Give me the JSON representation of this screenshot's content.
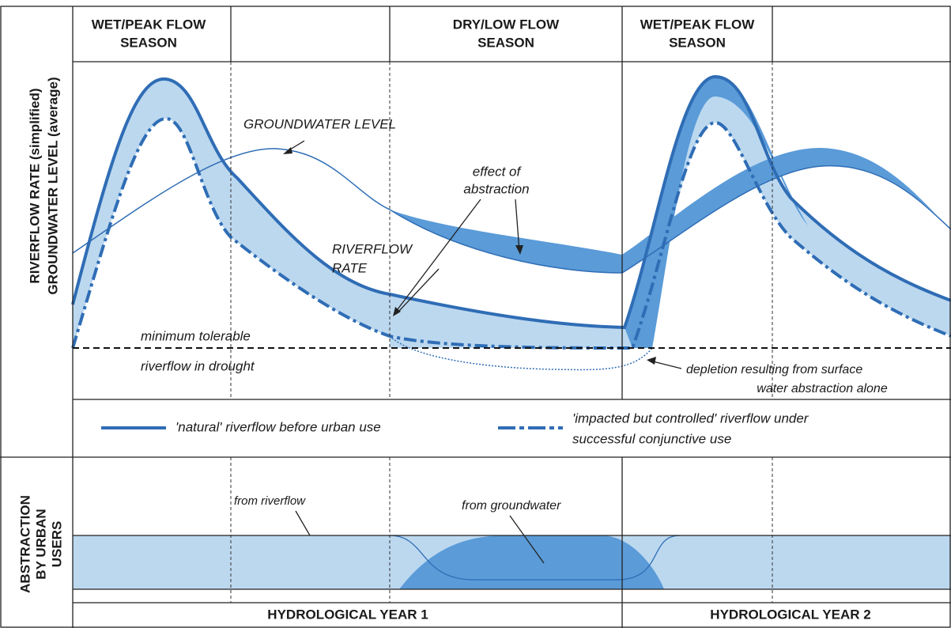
{
  "header": {
    "seasons": [
      [
        "WET/PEAK FLOW",
        "SEASON"
      ],
      [
        "DRY/LOW FLOW",
        "SEASON"
      ],
      [
        "WET/PEAK FLOW",
        "SEASON"
      ]
    ]
  },
  "axis_labels": {
    "top": [
      "RIVERFLOW RATE (simplified)",
      "GROUNDWATER LEVEL (average)"
    ],
    "bottom": [
      "ABSTRACTION",
      "BY URBAN",
      "USERS"
    ]
  },
  "annotations": {
    "groundwater_level": "GROUNDWATER LEVEL",
    "effect": [
      "effect of",
      "abstraction"
    ],
    "riverflow": [
      "RIVERFLOW",
      "RATE"
    ],
    "minimum": [
      "minimum tolerable",
      "riverflow in drought"
    ],
    "depletion": [
      "depletion resulting from surface",
      "water abstraction alone"
    ]
  },
  "legend": {
    "natural": "'natural' riverflow before urban use",
    "impacted": [
      "'impacted but controlled' riverflow under",
      "successful conjunctive use"
    ]
  },
  "abstraction": {
    "riverflow": "from riverflow",
    "groundwater": "from groundwater"
  },
  "footer": [
    "HYDROLOGICAL YEAR 1",
    "HYDROLOGICAL YEAR 2"
  ]
}
